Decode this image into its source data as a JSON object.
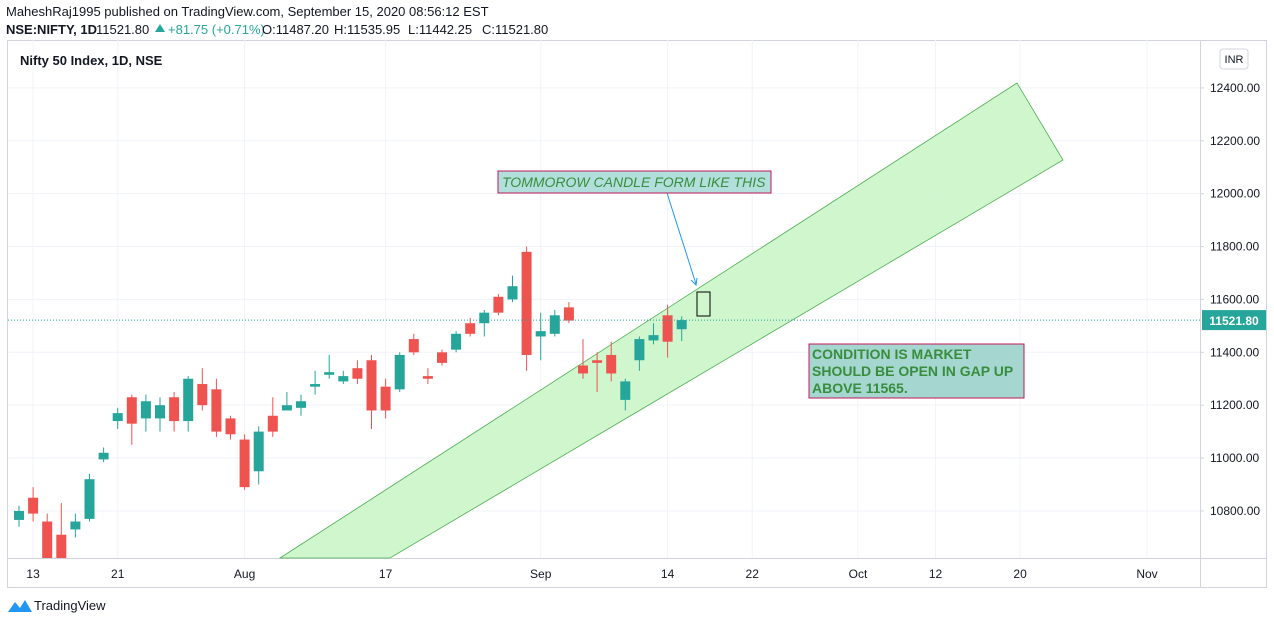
{
  "header": {
    "publisher": "MaheshRaj1995 published on TradingView.com, September 15, 2020 08:56:12 EST",
    "symbol": "NSE:NIFTY, 1D",
    "last": "11521.80",
    "change": "+81.75 (+0.71%)",
    "open": "O:11487.20",
    "high": "H:11535.95",
    "low": "L:11442.25",
    "close": "C:11521.80"
  },
  "footer": {
    "brand": "TradingView"
  },
  "chart_data": {
    "type": "candlestick",
    "title": "Nifty 50 Index, 1D, NSE",
    "currency": "INR",
    "price_label": "11521.80",
    "up_color": "#26a69a",
    "down_color": "#ef5350",
    "series": [
      {
        "name": "NIFTY",
        "open": [
          10766,
          10850,
          10760,
          10710,
          10730,
          10770,
          10995,
          11140,
          11230,
          11150,
          11150,
          11230,
          11140,
          11280,
          11260,
          11150,
          11070,
          10950,
          11160,
          11180,
          11190,
          11270,
          11315,
          11290,
          11340,
          11370,
          11270,
          11260,
          11450,
          11310,
          11400,
          11410,
          11510,
          11510,
          11610,
          11600,
          11780,
          11460,
          11470,
          11570,
          11350,
          11370,
          11390,
          11220,
          11370,
          11445,
          11540,
          11487.2
        ],
        "high": [
          10820,
          10890,
          10790,
          10830,
          10790,
          10940,
          11040,
          11190,
          11240,
          11240,
          11230,
          11250,
          11310,
          11340,
          11300,
          11160,
          11090,
          11120,
          11230,
          11250,
          11240,
          11330,
          11390,
          11330,
          11370,
          11390,
          11300,
          11400,
          11470,
          11340,
          11410,
          11480,
          11530,
          11560,
          11620,
          11690,
          11800,
          11550,
          11560,
          11590,
          11450,
          11400,
          11440,
          11300,
          11460,
          11510,
          11580,
          11535.95
        ],
        "low": [
          10740,
          10760,
          10590,
          10600,
          10700,
          10760,
          10985,
          11110,
          11050,
          11100,
          11100,
          11100,
          11100,
          11180,
          11080,
          11070,
          10880,
          10900,
          11080,
          11180,
          11160,
          11240,
          11300,
          11280,
          11280,
          11110,
          11150,
          11250,
          11390,
          11280,
          11350,
          11400,
          11460,
          11460,
          11540,
          11590,
          11330,
          11370,
          11460,
          11510,
          11300,
          11250,
          11290,
          11180,
          11330,
          11430,
          11380,
          11442.25
        ],
        "close": [
          10800,
          10790,
          10610,
          10615,
          10760,
          10920,
          11020,
          11170,
          11130,
          11215,
          11200,
          11140,
          11300,
          11200,
          11100,
          11090,
          10890,
          11100,
          11100,
          11200,
          11215,
          11280,
          11325,
          11310,
          11300,
          11180,
          11180,
          11390,
          11400,
          11300,
          11360,
          11470,
          11470,
          11550,
          11550,
          11650,
          11390,
          11480,
          11540,
          11520,
          11320,
          11360,
          11320,
          11290,
          11450,
          11465,
          11440,
          11521.8
        ]
      }
    ],
    "xticks": [
      {
        "value": 1,
        "label": "13"
      },
      {
        "value": 7,
        "label": "21"
      },
      {
        "value": 16,
        "label": "Aug"
      },
      {
        "value": 26,
        "label": "17"
      },
      {
        "value": 37,
        "label": "Sep"
      },
      {
        "value": 46,
        "label": "14"
      },
      {
        "value": 52,
        "label": "22"
      },
      {
        "value": 59.5,
        "label": "Oct"
      },
      {
        "value": 65,
        "label": "12"
      },
      {
        "value": 71,
        "label": "20"
      },
      {
        "value": 80,
        "label": "Nov"
      }
    ],
    "ylim": [
      10622,
      12551
    ],
    "yticks": [
      {
        "value": 10800,
        "label": "10800.00"
      },
      {
        "value": 11000,
        "label": "11000.00"
      },
      {
        "value": 11200,
        "label": "11200.00"
      },
      {
        "value": 11400,
        "label": "11400.00"
      },
      {
        "value": 11600,
        "label": "11600.00"
      },
      {
        "value": 11800,
        "label": "11800.00"
      },
      {
        "value": 12000,
        "label": "12000.00"
      },
      {
        "value": 12200,
        "label": "12200.00"
      },
      {
        "value": 12400,
        "label": "12400.00"
      }
    ],
    "grid": true,
    "annotations": [
      {
        "text": "TOMMOROW CANDLE FORM LIKE THIS"
      },
      {
        "lines": [
          "CONDITION IS MARKET",
          "SHOULD BE OPEN IN GAP UP",
          "ABOVE 11565."
        ]
      }
    ]
  }
}
